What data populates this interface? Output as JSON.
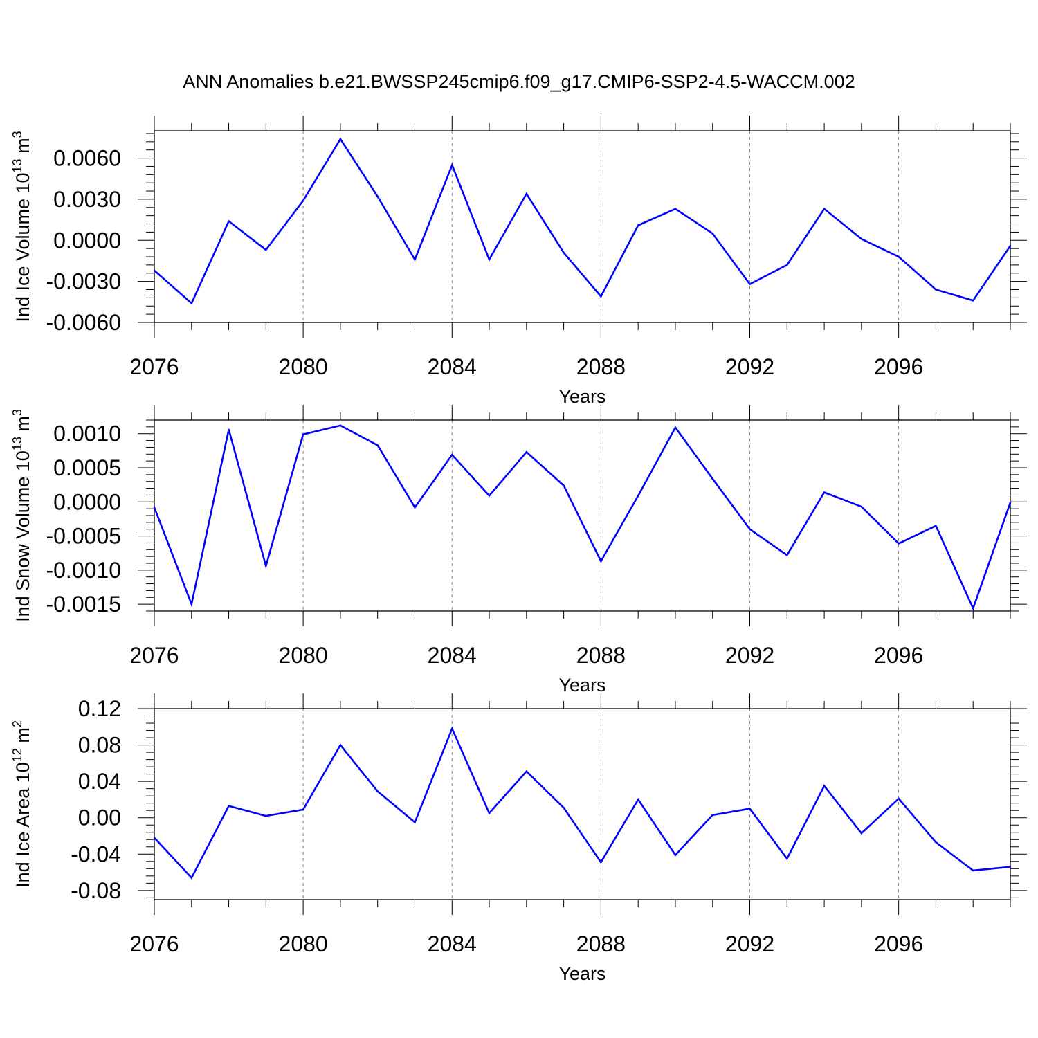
{
  "title": "ANN Anomalies b.e21.BWSSP245cmip6.f09_g17.CMIP6-SSP2-4.5-WACCM.002",
  "line_color": "#0000ff",
  "grid_color": "#808080",
  "chart_data": [
    {
      "type": "line",
      "ylabel": {
        "text": "Ind Ice Volume 10",
        "sup": "13",
        "unit": " m",
        "unit_sup": "3"
      },
      "xlabel": "Years",
      "xlim": [
        2076,
        2099
      ],
      "ylim": [
        -0.006,
        0.008
      ],
      "xticks": [
        2076,
        2080,
        2084,
        2088,
        2092,
        2096
      ],
      "xtick_labels": [
        "2076",
        "2080",
        "2084",
        "2088",
        "2092",
        "2096"
      ],
      "yticks": [
        -0.006,
        -0.003,
        0.0,
        0.003,
        0.006
      ],
      "ytick_labels": [
        "-0.0060",
        "-0.0030",
        "0.0000",
        "0.0030",
        "0.0060"
      ],
      "grid": "vertical dashed at labeled years",
      "x": [
        2076,
        2077,
        2078,
        2079,
        2080,
        2081,
        2082,
        2083,
        2084,
        2085,
        2086,
        2087,
        2088,
        2089,
        2090,
        2091,
        2092,
        2093,
        2094,
        2095,
        2096,
        2097,
        2098,
        2099
      ],
      "values": [
        -0.0022,
        -0.0046,
        0.0014,
        -0.0007,
        0.0029,
        0.0074,
        0.0032,
        -0.0014,
        0.0055,
        -0.0014,
        0.0034,
        -0.0009,
        -0.0041,
        0.0011,
        0.0023,
        0.0005,
        -0.0032,
        -0.0018,
        0.0023,
        0.0001,
        -0.0012,
        -0.0036,
        -0.0044,
        -0.0004
      ]
    },
    {
      "type": "line",
      "ylabel": {
        "text": "Ind Snow Volume 10",
        "sup": "13",
        "unit": " m",
        "unit_sup": "3"
      },
      "xlabel": "Years",
      "xlim": [
        2076,
        2099
      ],
      "ylim": [
        -0.0016,
        0.0012
      ],
      "xticks": [
        2076,
        2080,
        2084,
        2088,
        2092,
        2096
      ],
      "xtick_labels": [
        "2076",
        "2080",
        "2084",
        "2088",
        "2092",
        "2096"
      ],
      "yticks": [
        -0.0015,
        -0.001,
        -0.0005,
        0.0,
        0.0005,
        0.001
      ],
      "ytick_labels": [
        "-0.0015",
        "-0.0010",
        "-0.0005",
        "0.0000",
        "0.0005",
        "0.0010"
      ],
      "grid": "vertical dashed at labeled years",
      "x": [
        2076,
        2077,
        2078,
        2079,
        2080,
        2081,
        2082,
        2083,
        2084,
        2085,
        2086,
        2087,
        2088,
        2089,
        2090,
        2091,
        2092,
        2093,
        2094,
        2095,
        2096,
        2097,
        2098,
        2099
      ],
      "values": [
        -8e-05,
        -0.0015,
        0.00106,
        -0.00094,
        0.00099,
        0.00112,
        0.00083,
        -8e-05,
        0.00069,
        9e-05,
        0.00073,
        0.00024,
        -0.00087,
        9e-05,
        0.00109,
        0.00034,
        -0.0004,
        -0.00078,
        0.00014,
        -7e-05,
        -0.00061,
        -0.00035,
        -0.00156,
        -1e-05
      ]
    },
    {
      "type": "line",
      "ylabel": {
        "text": "Ind Ice Area 10",
        "sup": "12",
        "unit": " m",
        "unit_sup": "2"
      },
      "xlabel": "Years",
      "xlim": [
        2076,
        2099
      ],
      "ylim": [
        -0.09,
        0.12
      ],
      "xticks": [
        2076,
        2080,
        2084,
        2088,
        2092,
        2096
      ],
      "xtick_labels": [
        "2076",
        "2080",
        "2084",
        "2088",
        "2092",
        "2096"
      ],
      "yticks": [
        -0.08,
        -0.04,
        0.0,
        0.04,
        0.08,
        0.12
      ],
      "ytick_labels": [
        "-0.08",
        "-0.04",
        "0.00",
        "0.04",
        "0.08",
        "0.12"
      ],
      "grid": "vertical dashed at labeled years",
      "x": [
        2076,
        2077,
        2078,
        2079,
        2080,
        2081,
        2082,
        2083,
        2084,
        2085,
        2086,
        2087,
        2088,
        2089,
        2090,
        2091,
        2092,
        2093,
        2094,
        2095,
        2096,
        2097,
        2098,
        2099
      ],
      "values": [
        -0.022,
        -0.066,
        0.013,
        0.002,
        0.009,
        0.08,
        0.029,
        -0.005,
        0.098,
        0.005,
        0.051,
        0.011,
        -0.049,
        0.02,
        -0.041,
        0.003,
        0.01,
        -0.045,
        0.035,
        -0.017,
        0.021,
        -0.027,
        -0.058,
        -0.054
      ]
    }
  ]
}
